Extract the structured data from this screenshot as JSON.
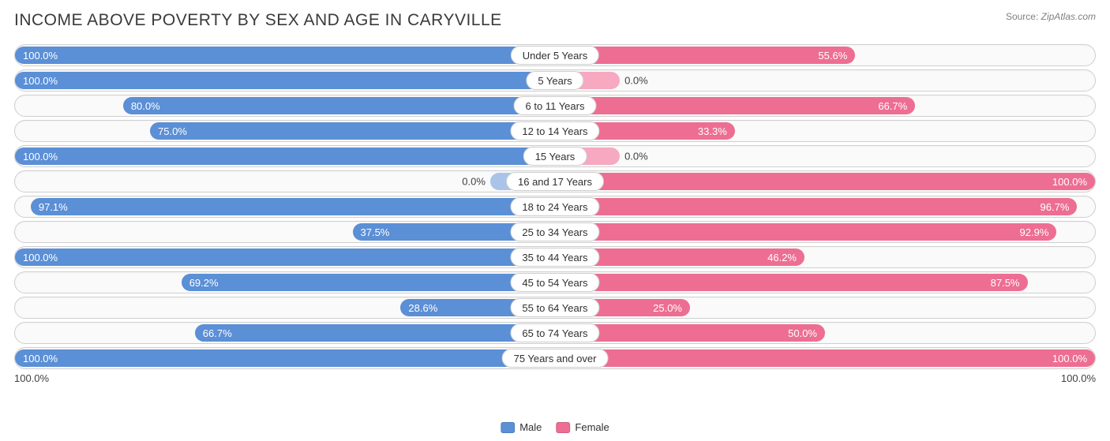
{
  "title": "INCOME ABOVE POVERTY BY SEX AND AGE IN CARYVILLE",
  "source_prefix": "Source: ",
  "source_name": "ZipAtlas.com",
  "colors": {
    "male": "#5b8fd6",
    "male_light": "#a9c4e8",
    "female": "#ed6e92",
    "female_light": "#f6a9c0",
    "row_border": "#cfcfcf",
    "row_bg": "#fafafa",
    "text": "#303030",
    "bar_text": "#ffffff"
  },
  "min_bar_pct": 12,
  "label_outside_threshold": 18,
  "rows": [
    {
      "category": "Under 5 Years",
      "male": 100.0,
      "female": 55.6
    },
    {
      "category": "5 Years",
      "male": 100.0,
      "female": 0.0
    },
    {
      "category": "6 to 11 Years",
      "male": 80.0,
      "female": 66.7
    },
    {
      "category": "12 to 14 Years",
      "male": 75.0,
      "female": 33.3
    },
    {
      "category": "15 Years",
      "male": 100.0,
      "female": 0.0
    },
    {
      "category": "16 and 17 Years",
      "male": 0.0,
      "female": 100.0
    },
    {
      "category": "18 to 24 Years",
      "male": 97.1,
      "female": 96.7
    },
    {
      "category": "25 to 34 Years",
      "male": 37.5,
      "female": 92.9
    },
    {
      "category": "35 to 44 Years",
      "male": 100.0,
      "female": 46.2
    },
    {
      "category": "45 to 54 Years",
      "male": 69.2,
      "female": 87.5
    },
    {
      "category": "55 to 64 Years",
      "male": 28.6,
      "female": 25.0
    },
    {
      "category": "65 to 74 Years",
      "male": 66.7,
      "female": 50.0
    },
    {
      "category": "75 Years and over",
      "male": 100.0,
      "female": 100.0
    }
  ],
  "axis": {
    "left": "100.0%",
    "right": "100.0%"
  },
  "legend": [
    {
      "label": "Male",
      "color_key": "male"
    },
    {
      "label": "Female",
      "color_key": "female"
    }
  ]
}
